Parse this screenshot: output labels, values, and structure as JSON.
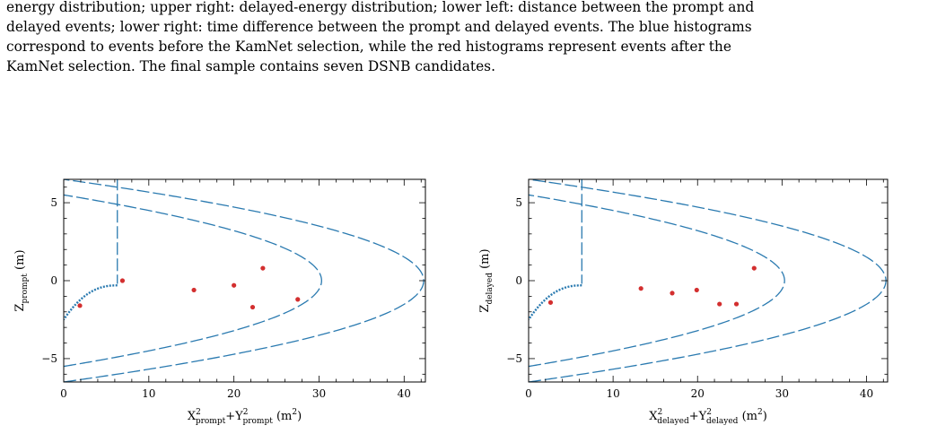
{
  "caption": {
    "line1": "energy distribution; upper right: delayed-energy distribution; lower left: distance between the prompt and",
    "line2": "delayed events; lower right: time difference between the prompt and delayed events. The blue histograms",
    "line3": "correspond to events before the KamNet selection, while the red histograms represent events after the",
    "line4": "KamNet selection. The final sample contains seven DSNB candidates."
  },
  "colors": {
    "curve": "#2a7ab0",
    "point": "#d32f2f",
    "frame": "#000000"
  },
  "chart_data": [
    {
      "type": "scatter",
      "title": "",
      "xlabel": {
        "main": "X",
        "sup1": "2",
        "sub1": "prompt",
        "plus": "+Y",
        "sup2": "2",
        "sub2": "prompt",
        "unit": " (m",
        "unit_sup": "2",
        "unit_close": ")"
      },
      "ylabel": {
        "main": "Z",
        "sub": "prompt",
        "unit": " (m)"
      },
      "xlim": [
        0,
        42.5
      ],
      "ylim": [
        -6.5,
        6.5
      ],
      "xticks": [
        0,
        10,
        20,
        30,
        40
      ],
      "yticks": [
        -5,
        0,
        5
      ],
      "xtick_labels": [
        "0",
        "10",
        "20",
        "30",
        "40"
      ],
      "ytick_labels": [
        "−5",
        "0",
        "5"
      ],
      "points": [
        {
          "x": 1.9,
          "y": -1.6
        },
        {
          "x": 6.9,
          "y": 0.0
        },
        {
          "x": 15.3,
          "y": -0.6
        },
        {
          "x": 20.0,
          "y": -0.3
        },
        {
          "x": 22.2,
          "y": -1.7
        },
        {
          "x": 23.4,
          "y": 0.8
        },
        {
          "x": 27.5,
          "y": -1.2
        }
      ]
    },
    {
      "type": "scatter",
      "title": "",
      "xlabel": {
        "main": "X",
        "sup1": "2",
        "sub1": "delayed",
        "plus": "+Y",
        "sup2": "2",
        "sub2": "delayed",
        "unit": " (m",
        "unit_sup": "2",
        "unit_close": ")"
      },
      "ylabel": {
        "main": "Z",
        "sub": "delayed",
        "unit": " (m)"
      },
      "xlim": [
        0,
        42.5
      ],
      "ylim": [
        -6.5,
        6.5
      ],
      "xticks": [
        0,
        10,
        20,
        30,
        40
      ],
      "yticks": [
        -5,
        0,
        5
      ],
      "xtick_labels": [
        "0",
        "10",
        "20",
        "30",
        "40"
      ],
      "ytick_labels": [
        "−5",
        "0",
        "5"
      ],
      "points": [
        {
          "x": 2.6,
          "y": -1.4
        },
        {
          "x": 13.3,
          "y": -0.5
        },
        {
          "x": 17.0,
          "y": -0.8
        },
        {
          "x": 19.9,
          "y": -0.6
        },
        {
          "x": 22.6,
          "y": -1.5
        },
        {
          "x": 24.6,
          "y": -1.5
        },
        {
          "x": 26.7,
          "y": 0.8
        }
      ]
    }
  ]
}
